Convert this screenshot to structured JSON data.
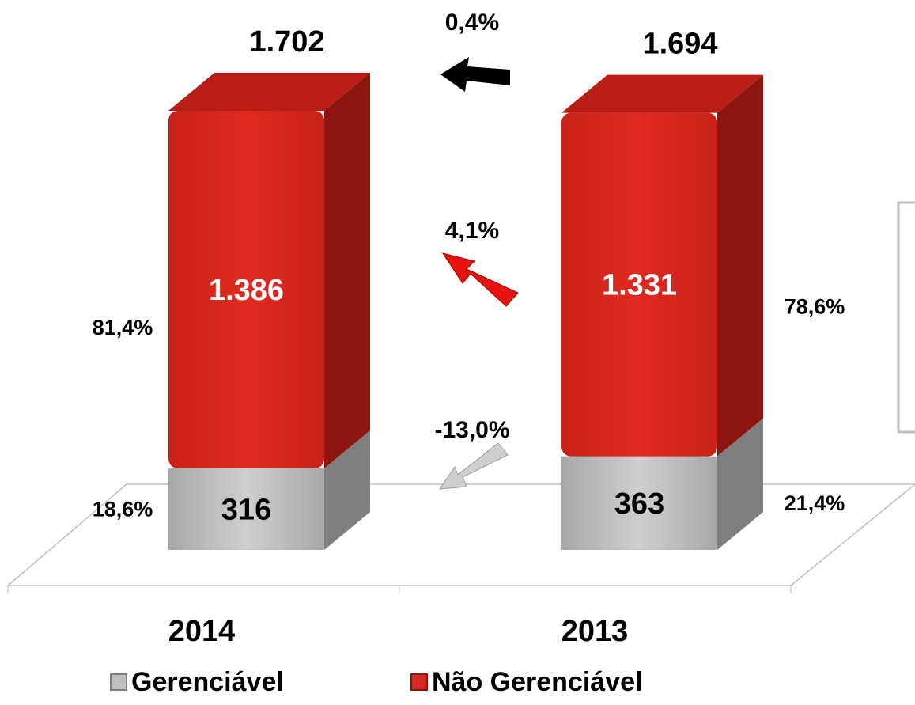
{
  "chart_data": {
    "type": "bar",
    "stacked": true,
    "categories": [
      "2014",
      "2013"
    ],
    "series": [
      {
        "name": "Gerenciável",
        "color": "#bfbfbf",
        "values": [
          316,
          363
        ]
      },
      {
        "name": "Não Gerenciável",
        "color": "#d42a1f",
        "values": [
          1386,
          1331
        ],
        "value_labels": [
          "1.386",
          "1.331"
        ]
      }
    ],
    "totals": {
      "values": [
        1702,
        1694
      ],
      "value_labels": [
        "1.702",
        "1.694"
      ]
    },
    "share_labels": [
      [
        "18,6%",
        "21,4%"
      ],
      [
        "81,4%",
        "78,6%"
      ]
    ],
    "changes": [
      "0,4%",
      "4,1%",
      "-13,0%"
    ]
  }
}
